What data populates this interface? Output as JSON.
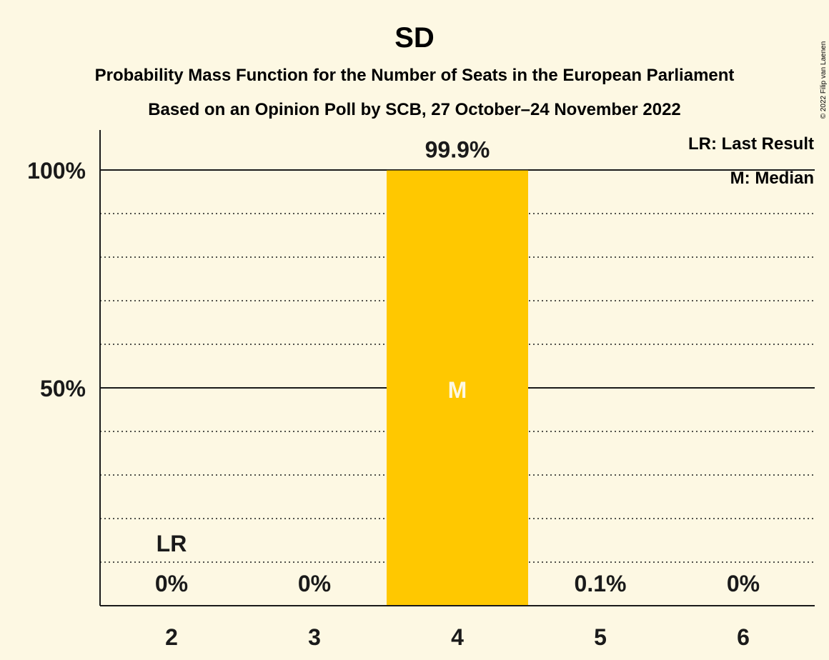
{
  "chart_data": {
    "type": "bar",
    "title": "SD",
    "subtitle_1": "Probability Mass Function for the Number of Seats in the European Parliament",
    "subtitle_2": "Based on an Opinion Poll by SCB, 27 October–24 November 2022",
    "categories": [
      "2",
      "3",
      "4",
      "5",
      "6"
    ],
    "values": [
      0,
      0,
      99.9,
      0.1,
      0
    ],
    "value_labels": [
      "0%",
      "0%",
      "99.9%",
      "0.1%",
      "0%"
    ],
    "ylim": [
      0,
      100
    ],
    "y_ticks": [
      {
        "value": 50,
        "label": "50%"
      },
      {
        "value": 100,
        "label": "100%"
      }
    ],
    "minor_gridline_step": 10,
    "legend": {
      "position": "top-right",
      "entries": [
        "LR: Last Result",
        "M: Median"
      ]
    },
    "last_result": {
      "category": "2",
      "marker": "LR"
    },
    "median": {
      "category": "4",
      "marker": "M"
    },
    "colors": {
      "bar": "#ffc800",
      "background": "#fdf8e3",
      "axis": "#1a1a1a",
      "median_text": "#fdf8e3"
    },
    "copyright": "© 2022 Filip van Laenen"
  }
}
